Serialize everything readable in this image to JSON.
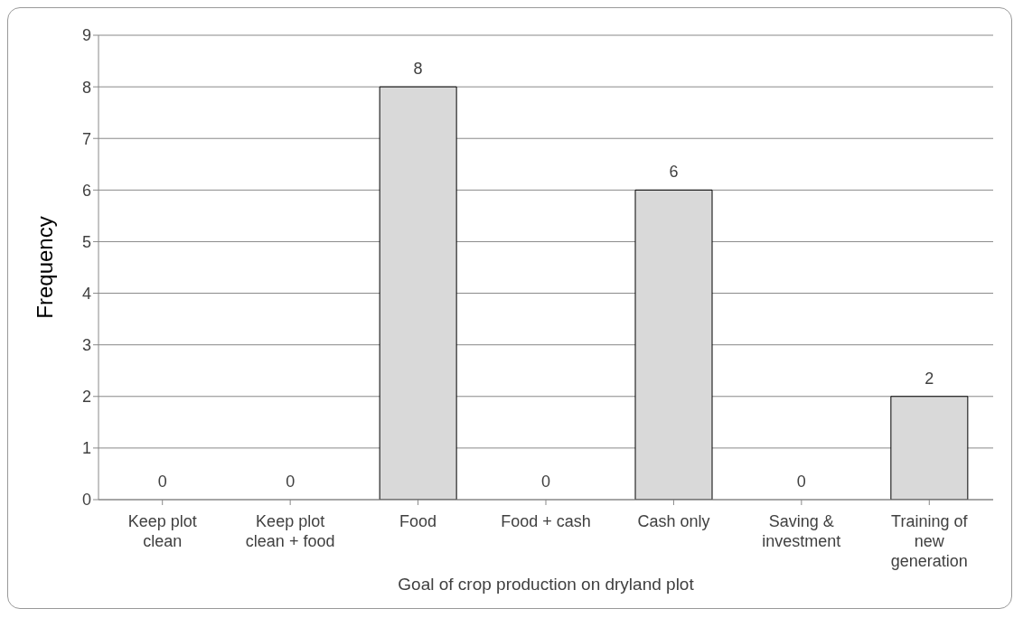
{
  "chart_data": {
    "type": "bar",
    "xlabel": "Goal of crop production on dryland plot",
    "ylabel": "Frequency",
    "categories": [
      "Keep plot clean",
      "Keep plot clean + food",
      "Food",
      "Food + cash",
      "Cash only",
      "Saving & investment",
      "Training of new generation"
    ],
    "values": [
      0,
      0,
      8,
      0,
      6,
      0,
      2
    ],
    "color": "#d9d9d9",
    "ylim": [
      0,
      9
    ],
    "yticks": [
      0,
      1,
      2,
      3,
      4,
      5,
      6,
      7,
      8,
      9
    ],
    "grid": "y",
    "data_labels": true
  }
}
